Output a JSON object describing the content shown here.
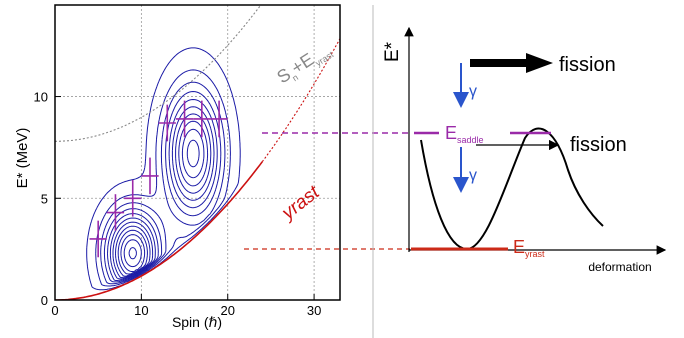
{
  "chart_data": [
    {
      "type": "contour",
      "xlabel": "Spin (ℏ)",
      "ylabel": "E* (MeV)",
      "xlim": [
        0,
        33
      ],
      "ylim": [
        0,
        14.5
      ],
      "xticks": [
        0,
        10,
        20,
        30
      ],
      "yticks": [
        0,
        5,
        10
      ],
      "grid": true,
      "colors": {
        "contour": "#1a1aa6",
        "marker": "#9a2aa8",
        "yrast": "#cc1111",
        "sn_line": "#888888",
        "frame": "#000000"
      },
      "curves": [
        {
          "name": "yrast",
          "label": "yrast",
          "coef": 0.0118,
          "x_end": 24,
          "style": "solid",
          "color": "#cc1111"
        },
        {
          "name": "yrast-extension",
          "coef": 0.0118,
          "x_start": 24,
          "x_end": 33,
          "style": "dotted",
          "color": "#cc1111"
        },
        {
          "name": "sn-plus-yrast",
          "label_main": "S",
          "label_sub1": "n",
          "label_plus": "+E",
          "label_sub2": "yrast",
          "offset": 7.8,
          "coef": 0.0118,
          "style": "dotted",
          "color": "#888888"
        }
      ],
      "markers": [
        {
          "x": 5,
          "y": 3.0,
          "xerr": 1.0,
          "yerr": 0.9
        },
        {
          "x": 7,
          "y": 4.3,
          "xerr": 1.0,
          "yerr": 0.9
        },
        {
          "x": 9,
          "y": 5.0,
          "xerr": 1.0,
          "yerr": 0.9
        },
        {
          "x": 11,
          "y": 6.1,
          "xerr": 1.0,
          "yerr": 0.9
        },
        {
          "x": 13,
          "y": 8.7,
          "xerr": 1.0,
          "yerr": 0.9
        },
        {
          "x": 15,
          "y": 8.9,
          "xerr": 1.0,
          "yerr": 0.9
        },
        {
          "x": 17,
          "y": 8.9,
          "xerr": 1.0,
          "yerr": 0.9
        },
        {
          "x": 19,
          "y": 8.9,
          "xerr": 1.0,
          "yerr": 0.9
        }
      ],
      "contour_peaks": [
        {
          "x": 9,
          "y": 2.3,
          "sx": 2.1,
          "sy": 1.4
        },
        {
          "x": 16,
          "y": 7.2,
          "sx": 2.2,
          "sy": 2.1
        }
      ],
      "contour_levels": 12,
      "threshold": 8.8
    },
    {
      "type": "diagram",
      "ylabel": "E*",
      "xlabel": "deformation",
      "fission_top": "fission",
      "fission_mid": "fission",
      "gamma": "γ",
      "e_saddle_main": "E",
      "e_saddle_sub": "saddle",
      "e_yrast_main": "E",
      "e_yrast_sub": "yrast",
      "colors": {
        "saddle": "#9a2aa8",
        "yrast": "#cc2a18",
        "gamma": "#2a55cc",
        "curve": "#000000"
      }
    }
  ]
}
